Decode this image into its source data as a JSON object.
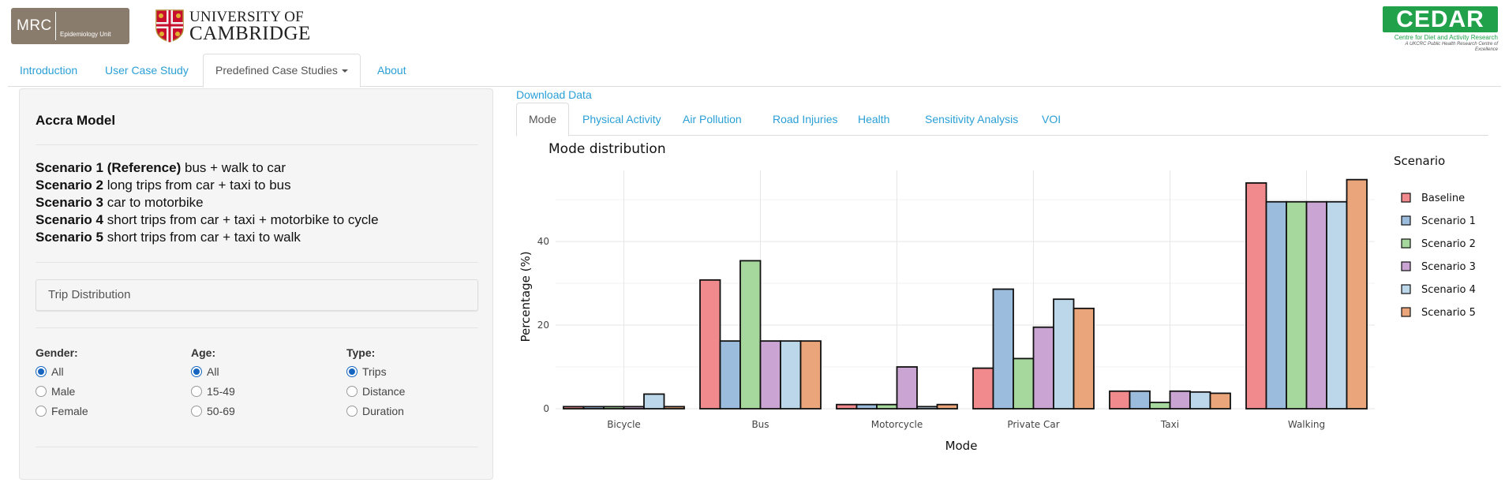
{
  "header": {
    "mrc_logo": {
      "name": "MRC",
      "unit": "Epidemiology Unit"
    },
    "cambridge_logo": {
      "line1": "UNIVERSITY OF",
      "line2": "CAMBRIDGE"
    },
    "cedar_logo": {
      "name": "CEDAR",
      "line1": "Centre for Diet and Activity Research",
      "line2": "A UKCRC Public Health Research Centre of Excellence"
    }
  },
  "nav": {
    "items": [
      {
        "label": "Introduction"
      },
      {
        "label": "User Case Study"
      },
      {
        "label": "Predefined Case Studies"
      },
      {
        "label": "About"
      }
    ],
    "active": "Predefined Case Studies"
  },
  "sidebar": {
    "title": "Accra Model",
    "scenarios": [
      {
        "name": "Scenario 1 (Reference)",
        "desc": "bus + walk to car"
      },
      {
        "name": "Scenario 2",
        "desc": "long trips from car + taxi to bus"
      },
      {
        "name": "Scenario 3",
        "desc": "car to motorbike"
      },
      {
        "name": "Scenario 4",
        "desc": "short trips from car + taxi + motorbike to cycle"
      },
      {
        "name": "Scenario 5",
        "desc": "short trips from car + taxi to walk"
      }
    ],
    "select": {
      "value": "Trip Distribution"
    },
    "radio_groups": [
      {
        "label": "Gender:",
        "options": [
          "All",
          "Male",
          "Female"
        ],
        "selected": 0
      },
      {
        "label": "Age:",
        "options": [
          "All",
          "15-49",
          "50-69"
        ],
        "selected": 0
      },
      {
        "label": "Type:",
        "options": [
          "Trips",
          "Distance",
          "Duration"
        ],
        "selected": 0
      }
    ]
  },
  "main": {
    "download_label": "Download Data",
    "tabs": [
      {
        "label": "Mode"
      },
      {
        "label": "Physical Activity"
      },
      {
        "label": "Air Pollution"
      },
      {
        "label": "Road Injuries"
      },
      {
        "label": "Health"
      },
      {
        "label": "Sensitivity Analysis"
      },
      {
        "label": "VOI"
      }
    ],
    "active_tab": "Mode"
  },
  "chart_data": {
    "type": "bar",
    "title": "Mode distribution",
    "xlabel": "Mode",
    "ylabel": "Percentage (%)",
    "legend_title": "Scenario",
    "legend_position": "right",
    "grid": true,
    "ylim": [
      0,
      57
    ],
    "yticks": [
      0,
      20,
      40
    ],
    "categories": [
      "Bicycle",
      "Bus",
      "Motorcycle",
      "Private Car",
      "Taxi",
      "Walking"
    ],
    "series": [
      {
        "name": "Baseline",
        "color": "#f08a8c",
        "values": [
          0.5,
          30.8,
          1.0,
          9.7,
          4.2,
          54.0
        ]
      },
      {
        "name": "Scenario 1",
        "color": "#9bbcdc",
        "values": [
          0.5,
          16.2,
          1.0,
          28.6,
          4.2,
          49.5
        ]
      },
      {
        "name": "Scenario 2",
        "color": "#a6d79c",
        "values": [
          0.5,
          35.4,
          1.0,
          12.0,
          1.5,
          49.5
        ]
      },
      {
        "name": "Scenario 3",
        "color": "#caa4d3",
        "values": [
          0.5,
          16.2,
          10.0,
          19.5,
          4.2,
          49.5
        ]
      },
      {
        "name": "Scenario 4",
        "color": "#bdd7ea",
        "values": [
          3.5,
          16.2,
          0.5,
          26.2,
          4.0,
          49.5
        ]
      },
      {
        "name": "Scenario 5",
        "color": "#eba57b",
        "values": [
          0.5,
          16.2,
          1.0,
          24.0,
          3.7,
          54.8
        ]
      }
    ]
  }
}
